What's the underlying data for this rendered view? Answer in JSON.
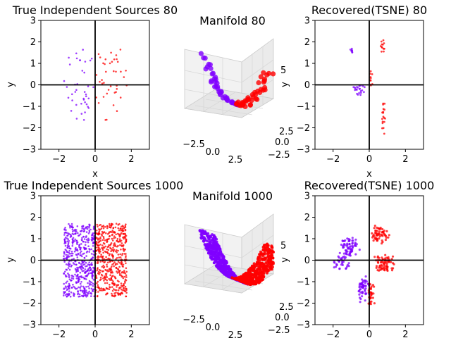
{
  "figure": {
    "colors": {
      "class_a": "#7f00ff",
      "class_b": "#ff0000",
      "axis": "#000000",
      "pane_3d": "#f2f2f2",
      "grid_3d": "#d8d8d8"
    }
  },
  "chart_data": [
    {
      "type": "scatter",
      "title": "True Independent Sources 80",
      "xlabel": "x",
      "ylabel": "y",
      "xlim": [
        -3,
        3
      ],
      "ylim": [
        -3,
        3
      ],
      "xticks": [
        -2,
        0,
        2
      ],
      "yticks": [
        -3,
        -2,
        -1,
        0,
        1,
        2,
        3
      ],
      "points_per_series": 40,
      "reference_lines": [
        "x=0",
        "y=0"
      ],
      "series": [
        {
          "color": "#7f00ff",
          "x_range": [
            -1.75,
            -0.05
          ],
          "y_range": [
            -1.65,
            1.65
          ]
        },
        {
          "color": "#ff0000",
          "x_range": [
            0.05,
            1.75
          ],
          "y_range": [
            -1.65,
            1.65
          ]
        }
      ]
    },
    {
      "type": "scatter",
      "title": "Manifold 80",
      "projection": "3d",
      "x_tick_labels": [
        "-2.5",
        "0.0",
        "2.5"
      ],
      "y_tick_labels": [
        "2.5",
        "0.0",
        "-2.5"
      ],
      "z_tick_labels": [
        "5"
      ],
      "points_per_series": 40,
      "series": [
        {
          "color": "#7f00ff"
        },
        {
          "color": "#ff0000"
        }
      ]
    },
    {
      "type": "scatter",
      "title": "Recovered(TSNE) 80",
      "xlabel": "x",
      "ylabel": "y",
      "xlim": [
        -3,
        3
      ],
      "ylim": [
        -3,
        3
      ],
      "xticks": [
        -2,
        0,
        2
      ],
      "yticks": [
        -3,
        -2,
        -1,
        0,
        1,
        2,
        3
      ],
      "reference_lines": [
        "x=0",
        "y=0"
      ],
      "clusters": [
        {
          "color": "#7f00ff",
          "center": [
            -0.95,
            1.55
          ],
          "spread": [
            0.07,
            0.2
          ],
          "n": 8
        },
        {
          "color": "#7f00ff",
          "center": [
            -0.6,
            -0.2
          ],
          "spread": [
            0.3,
            0.25
          ],
          "n": 22
        },
        {
          "color": "#ff0000",
          "center": [
            0.75,
            1.75
          ],
          "spread": [
            0.12,
            0.3
          ],
          "n": 12
        },
        {
          "color": "#ff0000",
          "center": [
            0.1,
            0.25
          ],
          "spread": [
            0.12,
            0.4
          ],
          "n": 10
        },
        {
          "color": "#ff0000",
          "center": [
            0.75,
            -1.45
          ],
          "spread": [
            0.12,
            0.65
          ],
          "n": 18
        }
      ]
    },
    {
      "type": "scatter",
      "title": "True Independent Sources 1000",
      "xlabel": "x",
      "ylabel": "y",
      "xlim": [
        -3,
        3
      ],
      "ylim": [
        -3,
        3
      ],
      "xticks": [
        -2,
        0,
        2
      ],
      "yticks": [
        -3,
        -2,
        -1,
        0,
        1,
        2,
        3
      ],
      "points_per_series": 500,
      "reference_lines": [
        "x=0",
        "y=0"
      ],
      "series": [
        {
          "color": "#7f00ff",
          "x_range": [
            -1.75,
            -0.02
          ],
          "y_range": [
            -1.7,
            1.7
          ]
        },
        {
          "color": "#ff0000",
          "x_range": [
            0.02,
            1.75
          ],
          "y_range": [
            -1.7,
            1.7
          ]
        }
      ]
    },
    {
      "type": "scatter",
      "title": "Manifold 1000",
      "projection": "3d",
      "x_tick_labels": [
        "-2.5",
        "0.0",
        "2.5"
      ],
      "y_tick_labels": [
        "2.5",
        "0.0",
        "-2.5"
      ],
      "z_tick_labels": [
        "5"
      ],
      "points_per_series": 500,
      "series": [
        {
          "color": "#7f00ff"
        },
        {
          "color": "#ff0000"
        }
      ]
    },
    {
      "type": "scatter",
      "title": "Recovered(TSNE) 1000",
      "xlabel": "x",
      "ylabel": "y",
      "xlim": [
        -3,
        3
      ],
      "ylim": [
        -3,
        3
      ],
      "xticks": [
        -2,
        0,
        2
      ],
      "yticks": [
        -3,
        -2,
        -1,
        0,
        1,
        2,
        3
      ],
      "reference_lines": [
        "x=0",
        "y=0"
      ],
      "clusters": [
        {
          "color": "#7f00ff",
          "center": [
            -1.1,
            0.6
          ],
          "spread": [
            0.45,
            0.45
          ],
          "n": 70
        },
        {
          "color": "#7f00ff",
          "center": [
            -0.35,
            -1.3
          ],
          "spread": [
            0.3,
            0.55
          ],
          "n": 55
        },
        {
          "color": "#7f00ff",
          "center": [
            -1.5,
            -0.1
          ],
          "spread": [
            0.35,
            0.35
          ],
          "n": 30
        },
        {
          "color": "#ff0000",
          "center": [
            0.6,
            1.2
          ],
          "spread": [
            0.45,
            0.45
          ],
          "n": 60
        },
        {
          "color": "#ff0000",
          "center": [
            0.85,
            -0.2
          ],
          "spread": [
            0.55,
            0.45
          ],
          "n": 70
        },
        {
          "color": "#ff0000",
          "center": [
            0.1,
            -1.6
          ],
          "spread": [
            0.2,
            0.6
          ],
          "n": 30
        }
      ]
    }
  ]
}
